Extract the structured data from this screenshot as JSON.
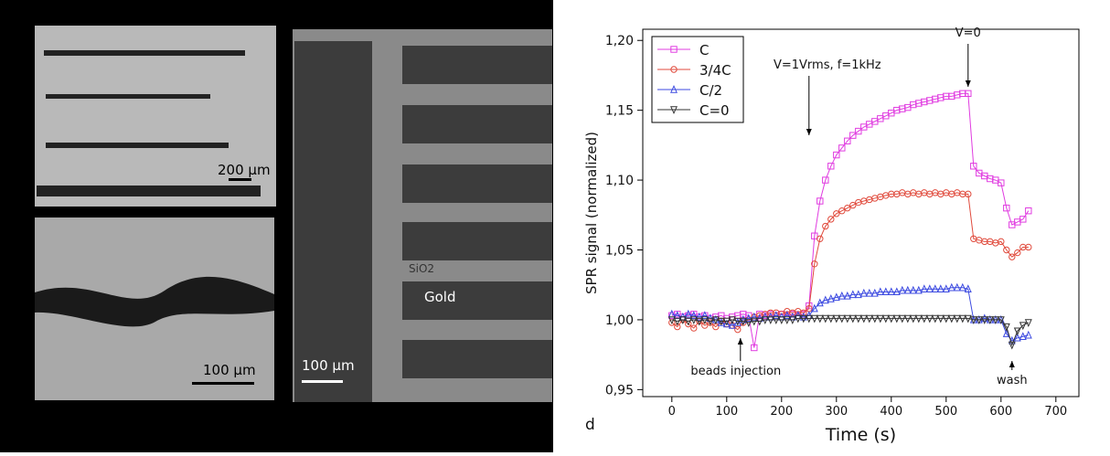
{
  "image_labels": {
    "scale_top": "200 µm",
    "scale_bottom": "100 µm",
    "scale_right": "100 µm",
    "sio2": "SiO2",
    "gold": "Gold"
  },
  "chart_data": {
    "type": "line",
    "x_label": "Time (s)",
    "y_label": "SPR signal (normalized)",
    "panel_label": "d",
    "annotations": [
      {
        "text": "V=1Vrms, f=1kHz",
        "x": 250
      },
      {
        "text": "V=0",
        "x": 540
      },
      {
        "text": "beads injection",
        "x": 125
      },
      {
        "text": "wash",
        "x": 620
      }
    ],
    "xlim": [
      -53,
      742
    ],
    "xticks": [
      0,
      100,
      200,
      300,
      400,
      500,
      600,
      700
    ],
    "ylim": [
      0.945,
      1.208
    ],
    "yticks": [
      {
        "value": 0.95,
        "label": "0,95"
      },
      {
        "value": 1.0,
        "label": "1,00"
      },
      {
        "value": 1.05,
        "label": "1,05"
      },
      {
        "value": 1.1,
        "label": "1,10"
      },
      {
        "value": 1.15,
        "label": "1,15"
      },
      {
        "value": 1.2,
        "label": "1,20"
      }
    ],
    "legend": "upper left",
    "x": [
      0,
      10,
      20,
      30,
      40,
      50,
      60,
      70,
      80,
      90,
      100,
      110,
      120,
      130,
      140,
      150,
      160,
      170,
      180,
      190,
      200,
      210,
      220,
      230,
      240,
      250,
      260,
      270,
      280,
      290,
      300,
      310,
      320,
      330,
      340,
      350,
      360,
      370,
      380,
      390,
      400,
      410,
      420,
      430,
      440,
      450,
      460,
      470,
      480,
      490,
      500,
      510,
      520,
      530,
      540,
      550,
      560,
      570,
      580,
      590,
      600,
      610,
      620,
      630,
      640,
      650
    ],
    "series": [
      {
        "name": "C",
        "color": "#e03ce0",
        "marker": "square",
        "values": [
          1.003,
          1.004,
          1.002,
          1.003,
          1.004,
          1.002,
          1.003,
          1.001,
          1.002,
          1.003,
          1.001,
          1.002,
          1.003,
          1.004,
          1.003,
          0.98,
          1.004,
          1.003,
          1.004,
          1.003,
          1.004,
          1.003,
          1.004,
          1.003,
          1.004,
          1.01,
          1.06,
          1.085,
          1.1,
          1.11,
          1.118,
          1.123,
          1.128,
          1.132,
          1.135,
          1.138,
          1.14,
          1.142,
          1.144,
          1.146,
          1.148,
          1.15,
          1.151,
          1.152,
          1.154,
          1.155,
          1.156,
          1.157,
          1.158,
          1.159,
          1.16,
          1.16,
          1.161,
          1.162,
          1.162,
          1.11,
          1.105,
          1.103,
          1.101,
          1.1,
          1.098,
          1.08,
          1.068,
          1.07,
          1.072,
          1.078
        ]
      },
      {
        "name": "3/4C",
        "color": "#e04a3c",
        "marker": "circle",
        "values": [
          0.998,
          0.995,
          1.0,
          0.997,
          0.994,
          0.999,
          0.996,
          0.998,
          0.995,
          0.999,
          0.997,
          0.996,
          0.993,
          0.998,
          1.0,
          1.002,
          1.003,
          1.004,
          1.005,
          1.005,
          1.004,
          1.006,
          1.005,
          1.006,
          1.005,
          1.008,
          1.04,
          1.058,
          1.067,
          1.072,
          1.076,
          1.078,
          1.08,
          1.082,
          1.084,
          1.085,
          1.086,
          1.087,
          1.088,
          1.089,
          1.09,
          1.09,
          1.091,
          1.09,
          1.091,
          1.09,
          1.091,
          1.09,
          1.091,
          1.09,
          1.091,
          1.09,
          1.091,
          1.09,
          1.09,
          1.058,
          1.057,
          1.056,
          1.056,
          1.055,
          1.056,
          1.05,
          1.045,
          1.048,
          1.052,
          1.052
        ]
      },
      {
        "name": "C/2",
        "color": "#3c4ae0",
        "marker": "triangle",
        "values": [
          1.004,
          1.003,
          1.002,
          1.004,
          1.003,
          1.002,
          1.003,
          1.001,
          1.0,
          0.998,
          0.997,
          0.996,
          0.998,
          1.0,
          1.001,
          1.002,
          1.001,
          1.002,
          1.002,
          1.003,
          1.002,
          1.003,
          1.002,
          1.003,
          1.002,
          1.003,
          1.008,
          1.012,
          1.014,
          1.015,
          1.016,
          1.017,
          1.017,
          1.018,
          1.018,
          1.019,
          1.019,
          1.019,
          1.02,
          1.02,
          1.02,
          1.02,
          1.021,
          1.021,
          1.021,
          1.021,
          1.022,
          1.022,
          1.022,
          1.022,
          1.022,
          1.023,
          1.023,
          1.023,
          1.022,
          1.0,
          1.0,
          1.001,
          1.0,
          1.0,
          1.0,
          0.99,
          0.985,
          0.987,
          0.988,
          0.989
        ]
      },
      {
        "name": "C=0",
        "color": "#333333",
        "marker": "triangle-down",
        "values": [
          1.0,
          0.999,
          1.0,
          0.999,
          1.0,
          0.999,
          1.0,
          0.999,
          1.0,
          0.999,
          0.999,
          1.0,
          0.999,
          0.999,
          0.998,
          0.999,
          0.999,
          1.0,
          1.0,
          1.0,
          1.0,
          1.0,
          1.0,
          1.001,
          1.001,
          1.001,
          1.001,
          1.001,
          1.001,
          1.001,
          1.001,
          1.001,
          1.001,
          1.001,
          1.001,
          1.001,
          1.001,
          1.001,
          1.001,
          1.001,
          1.001,
          1.001,
          1.001,
          1.001,
          1.001,
          1.001,
          1.001,
          1.001,
          1.001,
          1.001,
          1.001,
          1.001,
          1.001,
          1.001,
          1.001,
          1.0,
          1.0,
          1.0,
          1.0,
          1.0,
          1.0,
          0.995,
          0.982,
          0.992,
          0.996,
          0.998
        ]
      }
    ]
  }
}
